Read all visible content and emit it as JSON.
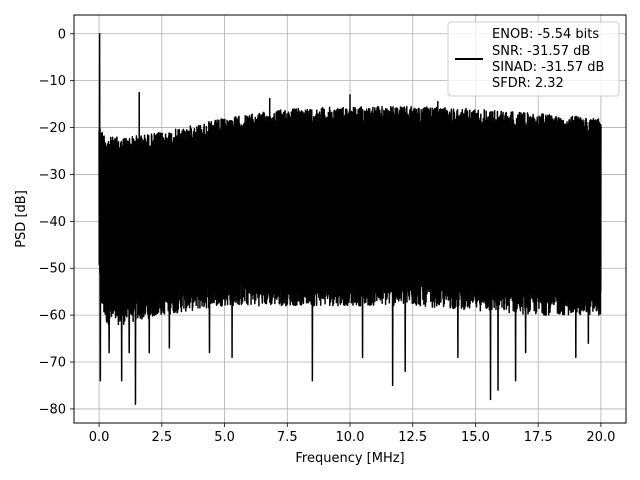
{
  "chart_data": {
    "type": "line",
    "xlabel": "Frequency [MHz]",
    "ylabel": "PSD [dB]",
    "xlim": [
      -1.0,
      21.0
    ],
    "ylim": [
      -83,
      4
    ],
    "x_ticks": [
      0.0,
      2.5,
      5.0,
      7.5,
      10.0,
      12.5,
      15.0,
      17.5,
      20.0
    ],
    "x_tick_labels": [
      "0.0",
      "2.5",
      "5.0",
      "7.5",
      "10.0",
      "12.5",
      "15.0",
      "17.5",
      "20.0"
    ],
    "y_ticks": [
      0,
      -10,
      -20,
      -30,
      -40,
      -50,
      -60,
      -70,
      -80
    ],
    "y_tick_labels": [
      "0",
      "−10",
      "−20",
      "−30",
      "−40",
      "−50",
      "−60",
      "−70",
      "−80"
    ],
    "grid": true,
    "legend_position": "top-right",
    "legend_lines": [
      "ENOB: -5.54 bits",
      "SNR: -31.57 dB",
      "SINAD: -31.57 dB",
      "SFDR: 2.32"
    ],
    "series_color": "#000000",
    "series": [
      {
        "name": "ENOB: -5.54 bits\nSNR: -31.57 dB\nSINAD: -31.57 dB\nSFDR: 2.32",
        "envelope": {
          "x": [
            0.0,
            0.05,
            0.3,
            1.0,
            2.5,
            5.0,
            7.5,
            10.0,
            12.5,
            15.0,
            17.5,
            20.0
          ],
          "upper": [
            -18,
            -20,
            -22,
            -22,
            -21,
            -18,
            -16,
            -15.5,
            -15.5,
            -16,
            -17,
            -18
          ],
          "lower": [
            -50,
            -58,
            -62,
            -62,
            -60,
            -58,
            -58,
            -58,
            -58,
            -59,
            -60,
            -60
          ]
        },
        "spikes": [
          {
            "x": 0.02,
            "y": 0.0
          },
          {
            "x": 1.6,
            "y": -12.5
          },
          {
            "x": 10.0,
            "y": -13.0
          },
          {
            "x": 6.8,
            "y": -13.8
          },
          {
            "x": 13.5,
            "y": -14.5
          },
          {
            "x": 0.05,
            "y": -74
          },
          {
            "x": 0.4,
            "y": -68
          },
          {
            "x": 0.9,
            "y": -74
          },
          {
            "x": 1.2,
            "y": -68
          },
          {
            "x": 1.45,
            "y": -79
          },
          {
            "x": 2.0,
            "y": -68
          },
          {
            "x": 2.8,
            "y": -67
          },
          {
            "x": 4.4,
            "y": -68
          },
          {
            "x": 5.3,
            "y": -69
          },
          {
            "x": 8.5,
            "y": -74
          },
          {
            "x": 10.5,
            "y": -69
          },
          {
            "x": 11.7,
            "y": -75
          },
          {
            "x": 12.2,
            "y": -72
          },
          {
            "x": 14.3,
            "y": -69
          },
          {
            "x": 15.6,
            "y": -78
          },
          {
            "x": 15.9,
            "y": -76
          },
          {
            "x": 16.6,
            "y": -74
          },
          {
            "x": 17.0,
            "y": -68
          },
          {
            "x": 19.0,
            "y": -69
          },
          {
            "x": 19.5,
            "y": -66
          }
        ]
      }
    ]
  }
}
